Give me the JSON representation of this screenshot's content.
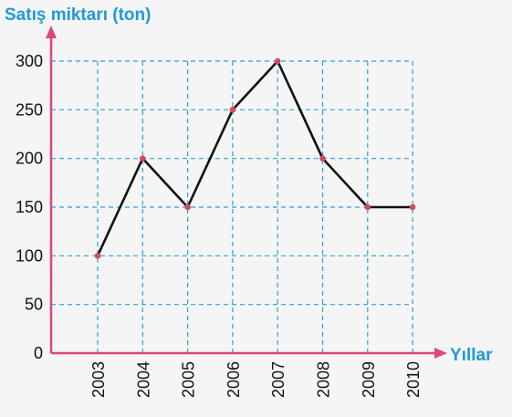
{
  "chart_data": {
    "type": "line",
    "title": "",
    "ylabel": "Satış miktarı (ton)",
    "xlabel": "Yıllar",
    "categories": [
      "2003",
      "2004",
      "2005",
      "2006",
      "2007",
      "2008",
      "2009",
      "2010"
    ],
    "series": [
      {
        "values": [
          100,
          200,
          150,
          250,
          300,
          200,
          150,
          150
        ]
      }
    ],
    "yticks": [
      0,
      50,
      100,
      150,
      200,
      250,
      300
    ],
    "ylim": [
      0,
      300
    ],
    "grid": true,
    "colors": {
      "axis": "#e0457a",
      "grid": "#2f9fd8",
      "line": "#111111",
      "point": "#d9485a",
      "label": "#1e9ad6"
    }
  }
}
